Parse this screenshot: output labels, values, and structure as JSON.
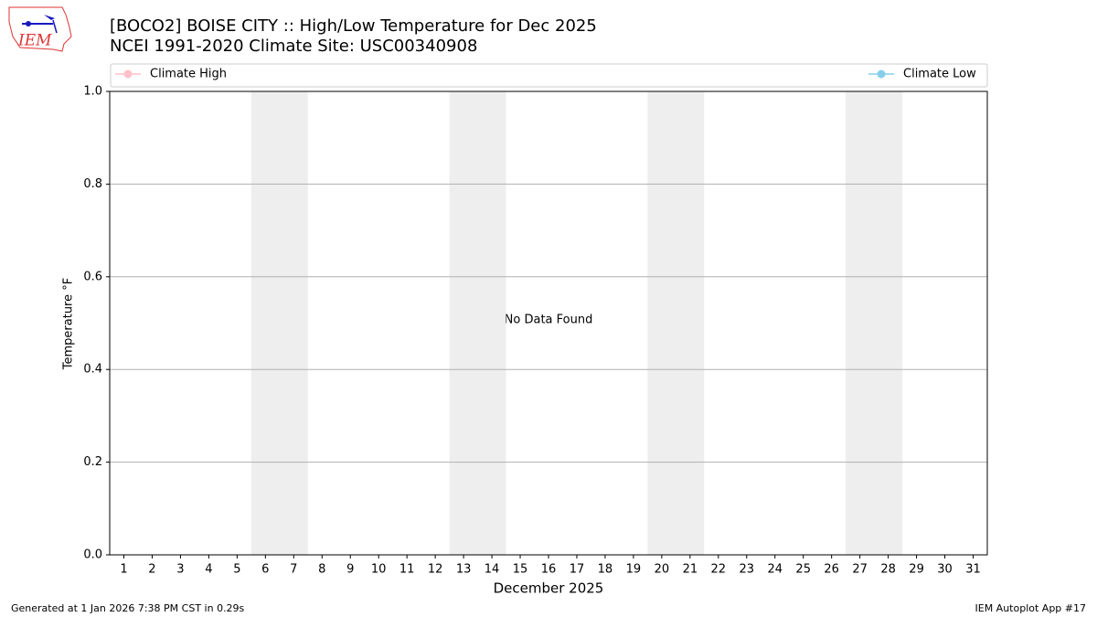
{
  "chart_data": {
    "type": "line",
    "title": "[BOCO2] BOISE CITY :: High/Low Temperature for Dec 2025",
    "subtitle": "NCEI 1991-2020 Climate Site: USC00340908",
    "logo_text": "IEM",
    "xlabel": "December 2025",
    "ylabel": "Temperature °F",
    "annotation": "No Data Found",
    "footer_left": "Generated at 1 Jan 2026 7:38 PM CST in 0.29s",
    "footer_right": "IEM Autoplot App #17",
    "categories": [
      "1",
      "2",
      "3",
      "4",
      "5",
      "6",
      "7",
      "8",
      "9",
      "10",
      "11",
      "12",
      "13",
      "14",
      "15",
      "16",
      "17",
      "18",
      "19",
      "20",
      "21",
      "22",
      "23",
      "24",
      "25",
      "26",
      "27",
      "28",
      "29",
      "30",
      "31"
    ],
    "shaded": [
      [
        "6",
        "7"
      ],
      [
        "13",
        "14"
      ],
      [
        "20",
        "21"
      ],
      [
        "27",
        "28"
      ]
    ],
    "series": [
      {
        "name": "Climate High",
        "color": "#ffc0cb",
        "values": [
          null,
          null,
          null,
          null,
          null,
          null,
          null,
          null,
          null,
          null,
          null,
          null,
          null,
          null,
          null,
          null,
          null,
          null,
          null,
          null,
          null,
          null,
          null,
          null,
          null,
          null,
          null,
          null,
          null,
          null,
          null
        ]
      },
      {
        "name": "Climate Low",
        "color": "#87ceeb",
        "values": [
          null,
          null,
          null,
          null,
          null,
          null,
          null,
          null,
          null,
          null,
          null,
          null,
          null,
          null,
          null,
          null,
          null,
          null,
          null,
          null,
          null,
          null,
          null,
          null,
          null,
          null,
          null,
          null,
          null,
          null,
          null
        ]
      }
    ],
    "ylim": [
      0,
      1
    ],
    "yticks": [
      {
        "value": 0,
        "label": "0.0"
      },
      {
        "value": 0.2,
        "label": "0.2"
      },
      {
        "value": 0.4,
        "label": "0.4"
      },
      {
        "value": 0.6,
        "label": "0.6"
      },
      {
        "value": 0.8,
        "label": "0.8"
      },
      {
        "value": 1,
        "label": "1.0"
      }
    ],
    "grid": true
  }
}
